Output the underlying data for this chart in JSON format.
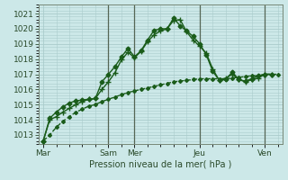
{
  "title": "",
  "xlabel": "Pression niveau de la mer( hPa )",
  "bg_color": "#cce8e8",
  "grid_color": "#aacccc",
  "line_color": "#1a5c1a",
  "yticks": [
    1013,
    1014,
    1015,
    1016,
    1017,
    1018,
    1019,
    1020,
    1021
  ],
  "ylim": [
    1012.4,
    1021.6
  ],
  "xtick_labels": [
    "Mar",
    "Sam",
    "Mer",
    "Jeu",
    "Ven"
  ],
  "xtick_pos": [
    0,
    60,
    84,
    144,
    204
  ],
  "xlim": [
    -4,
    220
  ],
  "series": [
    {
      "x": [
        0,
        6,
        12,
        18,
        24,
        30,
        36,
        42,
        48,
        54,
        60,
        66,
        72,
        78,
        84,
        90,
        96,
        102,
        108,
        114,
        120,
        126,
        132,
        138,
        144,
        150,
        156,
        162,
        168,
        174,
        180,
        186,
        192,
        198,
        204,
        210,
        216
      ],
      "y": [
        1012.6,
        1013.0,
        1013.5,
        1013.9,
        1014.2,
        1014.5,
        1014.7,
        1014.9,
        1015.0,
        1015.2,
        1015.35,
        1015.5,
        1015.65,
        1015.8,
        1015.9,
        1016.0,
        1016.1,
        1016.2,
        1016.3,
        1016.4,
        1016.5,
        1016.55,
        1016.6,
        1016.65,
        1016.7,
        1016.7,
        1016.7,
        1016.7,
        1016.7,
        1016.75,
        1016.8,
        1016.85,
        1016.9,
        1016.9,
        1017.0,
        1017.0,
        1017.0
      ],
      "marker": "D",
      "markersize": 2.0,
      "linestyle": "--",
      "linewidth": 1.0
    },
    {
      "x": [
        0,
        6,
        12,
        18,
        24,
        30,
        36,
        42,
        48,
        54,
        60,
        66,
        72,
        78,
        84,
        90,
        96,
        102,
        108,
        114,
        120,
        126,
        132,
        138,
        144,
        150,
        156,
        162,
        168,
        174,
        180,
        186,
        192,
        198,
        204,
        210
      ],
      "y": [
        1012.6,
        1014.1,
        1014.5,
        1014.85,
        1015.1,
        1015.25,
        1015.3,
        1015.35,
        1015.4,
        1016.5,
        1017.0,
        1017.5,
        1018.15,
        1018.7,
        1018.15,
        1018.55,
        1019.25,
        1019.9,
        1020.0,
        1020.0,
        1020.7,
        1020.2,
        1019.85,
        1019.5,
        1019.0,
        1018.3,
        1017.2,
        1016.6,
        1016.65,
        1017.15,
        1016.65,
        1016.55,
        1016.7,
        1016.9,
        1017.0,
        1017.0
      ],
      "marker": "D",
      "markersize": 2.5,
      "linestyle": "-",
      "linewidth": 1.0
    },
    {
      "x": [
        0,
        6,
        12,
        18,
        24,
        30,
        36,
        42,
        48,
        54,
        60,
        66,
        72,
        78,
        84,
        90,
        96,
        102,
        108,
        114,
        120,
        126,
        132,
        138,
        144,
        150,
        156,
        162,
        168,
        174,
        180,
        186,
        192,
        198,
        204,
        210
      ],
      "y": [
        1012.6,
        1014.0,
        1014.2,
        1014.5,
        1014.75,
        1015.0,
        1015.2,
        1015.35,
        1015.4,
        1016.0,
        1016.5,
        1017.1,
        1017.95,
        1018.45,
        1018.1,
        1018.5,
        1019.15,
        1019.6,
        1019.85,
        1020.0,
        1020.55,
        1020.6,
        1019.8,
        1019.25,
        1018.85,
        1018.4,
        1017.35,
        1016.6,
        1016.75,
        1017.0,
        1016.65,
        1016.5,
        1016.65,
        1016.75,
        1017.0,
        1017.0
      ],
      "marker": "+",
      "markersize": 4.5,
      "linestyle": "-",
      "linewidth": 1.0
    }
  ],
  "vlines_color": "#556655",
  "vlines": [
    60,
    84,
    144,
    204
  ]
}
